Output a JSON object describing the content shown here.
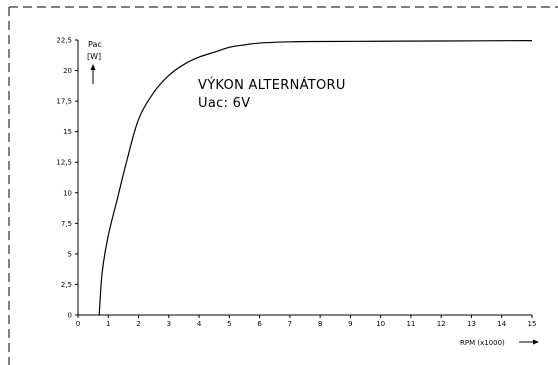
{
  "chart_data": {
    "type": "line",
    "title": "",
    "ylabel": "Pac",
    "yunit": "[W]",
    "xlabel": "RPM (x1000)",
    "xlim": [
      0,
      15
    ],
    "ylim": [
      0,
      22.5
    ],
    "x_ticks": [
      0,
      1,
      2,
      3,
      4,
      5,
      6,
      7,
      8,
      9,
      10,
      11,
      12,
      13,
      14,
      15
    ],
    "x_tick_labels": [
      "0",
      "1",
      "2",
      "3",
      "4",
      "5",
      "6",
      "7",
      "8",
      "9",
      "10",
      "11",
      "12",
      "13",
      "14",
      "15"
    ],
    "y_ticks": [
      0,
      2.5,
      5,
      7.5,
      10,
      12.5,
      15,
      17.5,
      20,
      22.5
    ],
    "y_tick_labels": [
      "0",
      "2,5",
      "5",
      "7,5",
      "10",
      "12,5",
      "15",
      "17,5",
      "20",
      "22,5"
    ],
    "grid": false,
    "annotations": [
      "VÝKON ALTERNÁTORU",
      "Uac:  6V"
    ],
    "series": [
      {
        "x": [
          0.7,
          0.8,
          1.0,
          1.3,
          1.6,
          2.0,
          2.5,
          3.0,
          3.5,
          4.0,
          4.5,
          5.0,
          5.5,
          6.0,
          7.0,
          8.0,
          10.0,
          12.0,
          15.0
        ],
        "values": [
          0,
          3.5,
          6.5,
          9.5,
          12.5,
          16.0,
          18.2,
          19.6,
          20.5,
          21.1,
          21.5,
          21.9,
          22.1,
          22.25,
          22.35,
          22.38,
          22.4,
          22.42,
          22.45
        ]
      }
    ]
  }
}
